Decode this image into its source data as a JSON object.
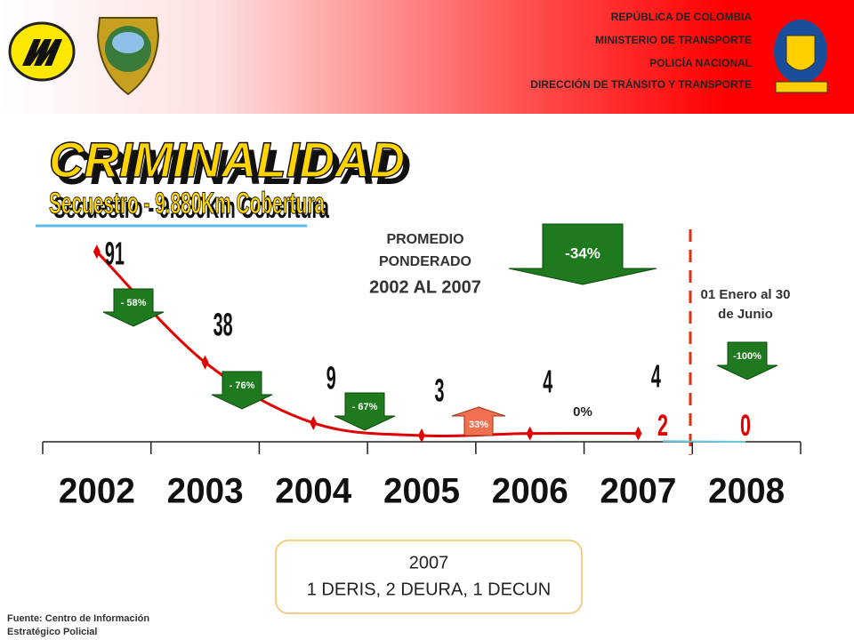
{
  "header": {
    "lines": [
      "REPÚBLICA DE COLOMBIA",
      "MINISTERIO DE TRANSPORTE",
      "POLICÍA NACIONAL",
      "DIRECCIÓN DE TRÁNSITO Y TRANSPORTE"
    ]
  },
  "title": "CRIMINALIDAD",
  "subtitle": "Secuestro - 9.880Km Cobertura",
  "average": {
    "lines": [
      "PROMEDIO",
      "PONDERADO",
      "2002 AL 2007"
    ],
    "value": -34,
    "value_label": "-34%"
  },
  "period_note": [
    "01 Enero al 30",
    "de Junio"
  ],
  "box": {
    "year": "2007",
    "detail": "1 DERIS, 2 DEURA, 1 DECUN"
  },
  "source": [
    "Fuente: Centro de Información",
    "Estratégico Policial"
  ],
  "chart_data": {
    "type": "line",
    "categories": [
      "2002",
      "2003",
      "2004",
      "2005",
      "2006",
      "2007",
      "2008"
    ],
    "series": [
      {
        "color": "#e00000",
        "values": [
          91,
          38,
          9,
          3,
          4,
          4,
          null
        ]
      }
    ],
    "partial": {
      "color": "#66ccdd",
      "label_color": "#e00000",
      "values": [
        2,
        0
      ]
    },
    "changes": {
      "values": [
        -58,
        -76,
        -67,
        33,
        0,
        -100
      ],
      "value_labels": [
        "- 58%",
        "- 76%",
        "- 67%",
        "33%",
        "0%",
        "-100%"
      ]
    },
    "ylim": [
      0,
      100
    ]
  }
}
